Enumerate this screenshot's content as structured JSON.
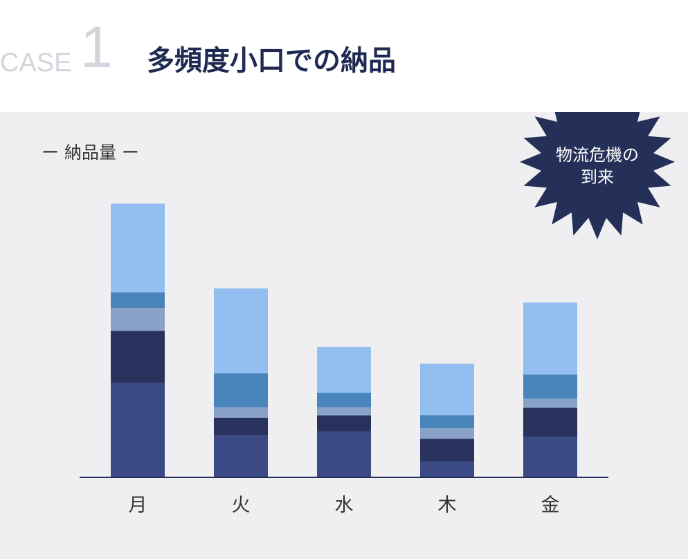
{
  "header": {
    "case_label": "CASE",
    "case_number": "1",
    "title": "多頻度小口での納品"
  },
  "badge": {
    "line1": "物流危機の",
    "line2": "到来",
    "color": "#253058"
  },
  "chart_data": {
    "type": "bar",
    "stacked": true,
    "ylabel": "ー 納品量 ー",
    "categories": [
      "月",
      "火",
      "水",
      "木",
      "金"
    ],
    "ylim": [
      0,
      100
    ],
    "grid": false,
    "series": [
      {
        "color": "#3b4a85",
        "values": [
          34.5,
          15.3,
          16.8,
          5.8,
          14.8
        ]
      },
      {
        "color": "#28325c",
        "values": [
          19.0,
          6.5,
          5.8,
          8.3,
          10.6
        ]
      },
      {
        "color": "#8aa2c8",
        "values": [
          8.3,
          3.8,
          3.0,
          3.8,
          3.3
        ]
      },
      {
        "color": "#4985bb",
        "values": [
          5.8,
          12.4,
          5.3,
          4.8,
          8.8
        ]
      },
      {
        "color": "#92bfef",
        "values": [
          32.3,
          31.0,
          16.7,
          18.8,
          26.3
        ]
      }
    ]
  }
}
